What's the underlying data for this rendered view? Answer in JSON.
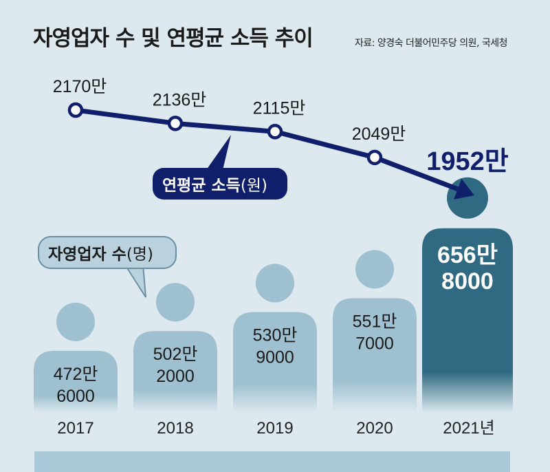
{
  "title": "자영업자 수 및 연평균 소득 추이",
  "source": "자료: 양경숙 더불어민주당 의원, 국세청",
  "colors": {
    "background": "#dde9ef",
    "income_line": "#0f1f6b",
    "person": "#9fc0d0",
    "person_highlight": "#2f6a82"
  },
  "chart_data": [
    {
      "type": "line",
      "categories": [
        "2017",
        "2018",
        "2019",
        "2020",
        "2021년"
      ],
      "series": [
        {
          "name": "연평균 소득(원)",
          "values": [
            21700000,
            21360000,
            21150000,
            20490000,
            19520000
          ],
          "labels": [
            "2170만",
            "2136만",
            "2115만",
            "2049만",
            "1952만"
          ]
        }
      ]
    },
    {
      "type": "bar",
      "categories": [
        "2017",
        "2018",
        "2019",
        "2020",
        "2021년"
      ],
      "series": [
        {
          "name": "자영업자 수(명)",
          "values": [
            4726000,
            5022000,
            5309000,
            5517000,
            6568000
          ],
          "labels": [
            [
              "472만",
              "6000"
            ],
            [
              "502만",
              "2000"
            ],
            [
              "530만",
              "9000"
            ],
            [
              "551만",
              "7000"
            ],
            [
              "656만",
              "8000"
            ]
          ]
        }
      ]
    }
  ],
  "callouts": {
    "income": {
      "main": "연평균 소득",
      "unit": "(원)"
    },
    "count": {
      "main": "자영업자 수",
      "unit": "(명)"
    }
  }
}
